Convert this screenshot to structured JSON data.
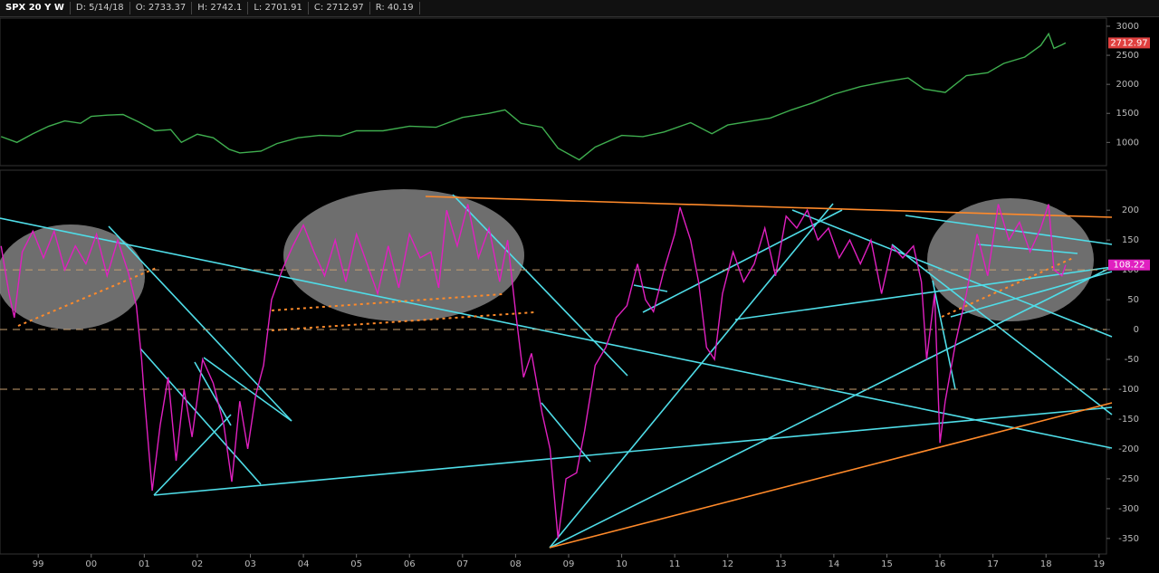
{
  "header": {
    "symbol": "SPX 20 Y W",
    "fields": [
      "D: 5/14/18",
      "O: 2733.37",
      "H: 2742.1",
      "L: 2701.91",
      "C: 2712.97",
      "R: 40.19"
    ]
  },
  "chart_data": [
    {
      "type": "line",
      "color": "#3fae4f",
      "last_value": 2712.97,
      "last_color": "#e0403f",
      "xlim": [
        1998.28,
        2019.14
      ],
      "ylim": [
        600,
        3140
      ],
      "yticks": [
        1000,
        1500,
        2000,
        2500,
        3000
      ],
      "x": [
        1998.3,
        1998.6,
        1998.9,
        1999.2,
        1999.5,
        1999.8,
        2000.0,
        2000.3,
        2000.6,
        2000.9,
        2001.2,
        2001.5,
        2001.7,
        2002.0,
        2002.3,
        2002.6,
        2002.8,
        2003.2,
        2003.5,
        2003.9,
        2004.3,
        2004.7,
        2005.0,
        2005.5,
        2006.0,
        2006.5,
        2007.0,
        2007.5,
        2007.8,
        2008.1,
        2008.5,
        2008.8,
        2009.2,
        2009.5,
        2010.0,
        2010.4,
        2010.8,
        2011.3,
        2011.7,
        2012.0,
        2012.4,
        2012.8,
        2013.2,
        2013.6,
        2014.0,
        2014.5,
        2015.0,
        2015.4,
        2015.7,
        2016.1,
        2016.5,
        2016.9,
        2017.2,
        2017.6,
        2017.9,
        2018.05,
        2018.15,
        2018.3,
        2018.37
      ],
      "values": [
        1100,
        1000,
        1150,
        1280,
        1370,
        1330,
        1450,
        1470,
        1480,
        1350,
        1200,
        1220,
        1000,
        1140,
        1080,
        880,
        820,
        850,
        980,
        1080,
        1120,
        1110,
        1200,
        1200,
        1280,
        1260,
        1430,
        1500,
        1560,
        1330,
        1260,
        900,
        700,
        920,
        1120,
        1100,
        1180,
        1340,
        1150,
        1300,
        1360,
        1420,
        1560,
        1680,
        1830,
        1960,
        2050,
        2110,
        1920,
        1860,
        2150,
        2200,
        2360,
        2470,
        2670,
        2870,
        2620,
        2680,
        2712.97
      ]
    },
    {
      "type": "line",
      "color": "#e020c0",
      "last_value": 108.22,
      "last_color": "#e020c0",
      "xlim": [
        1998.28,
        2019.14
      ],
      "ylim": [
        -376,
        267
      ],
      "yticks": [
        200,
        150,
        100,
        50,
        0,
        -50,
        -100,
        -150,
        -200,
        -250,
        -300,
        -350
      ],
      "reference_lines": [
        100,
        0,
        -100
      ],
      "reference_color": "#c8a070",
      "xticks": [
        {
          "value": 1999,
          "label": "99"
        },
        {
          "value": 2000,
          "label": "00"
        },
        {
          "value": 2001,
          "label": "01"
        },
        {
          "value": 2002,
          "label": "02"
        },
        {
          "value": 2003,
          "label": "03"
        },
        {
          "value": 2004,
          "label": "04"
        },
        {
          "value": 2005,
          "label": "05"
        },
        {
          "value": 2006,
          "label": "06"
        },
        {
          "value": 2007,
          "label": "07"
        },
        {
          "value": 2008,
          "label": "08"
        },
        {
          "value": 2009,
          "label": "09"
        },
        {
          "value": 2010,
          "label": "10"
        },
        {
          "value": 2011,
          "label": "11"
        },
        {
          "value": 2012,
          "label": "12"
        },
        {
          "value": 2013,
          "label": "13"
        },
        {
          "value": 2014,
          "label": "14"
        },
        {
          "value": 2015,
          "label": "15"
        },
        {
          "value": 2016,
          "label": "16"
        },
        {
          "value": 2017,
          "label": "17"
        },
        {
          "value": 2018,
          "label": "18"
        },
        {
          "value": 2019,
          "label": "19"
        }
      ],
      "x": [
        1998.3,
        1998.45,
        1998.55,
        1998.7,
        1998.9,
        1999.1,
        1999.3,
        1999.5,
        1999.7,
        1999.9,
        2000.1,
        2000.3,
        2000.5,
        2000.7,
        2000.85,
        2000.95,
        2001.0,
        2001.15,
        2001.3,
        2001.45,
        2001.6,
        2001.75,
        2001.9,
        2002.1,
        2002.3,
        2002.5,
        2002.65,
        2002.8,
        2002.95,
        2003.1,
        2003.25,
        2003.4,
        2003.6,
        2003.8,
        2004.0,
        2004.2,
        2004.4,
        2004.6,
        2004.8,
        2005.0,
        2005.2,
        2005.4,
        2005.6,
        2005.8,
        2006.0,
        2006.2,
        2006.4,
        2006.55,
        2006.7,
        2006.9,
        2007.1,
        2007.3,
        2007.5,
        2007.7,
        2007.85,
        2008.0,
        2008.15,
        2008.3,
        2008.5,
        2008.65,
        2008.8,
        2008.95,
        2009.15,
        2009.3,
        2009.5,
        2009.7,
        2009.9,
        2010.1,
        2010.3,
        2010.45,
        2010.6,
        2010.8,
        2011.0,
        2011.1,
        2011.3,
        2011.45,
        2011.6,
        2011.75,
        2011.9,
        2012.1,
        2012.3,
        2012.5,
        2012.7,
        2012.9,
        2013.1,
        2013.3,
        2013.5,
        2013.7,
        2013.9,
        2014.1,
        2014.3,
        2014.5,
        2014.7,
        2014.9,
        2015.1,
        2015.3,
        2015.5,
        2015.65,
        2015.75,
        2015.9,
        2016.0,
        2016.1,
        2016.3,
        2016.5,
        2016.7,
        2016.9,
        2017.1,
        2017.3,
        2017.5,
        2017.7,
        2017.9,
        2018.05,
        2018.15,
        2018.3,
        2018.37
      ],
      "values": [
        140,
        60,
        20,
        130,
        165,
        120,
        165,
        100,
        140,
        110,
        160,
        90,
        150,
        95,
        40,
        -50,
        -110,
        -270,
        -160,
        -80,
        -220,
        -100,
        -180,
        -50,
        -90,
        -160,
        -255,
        -120,
        -200,
        -110,
        -60,
        50,
        100,
        140,
        175,
        130,
        90,
        150,
        80,
        160,
        110,
        60,
        140,
        70,
        160,
        120,
        130,
        70,
        200,
        140,
        210,
        120,
        170,
        80,
        150,
        30,
        -80,
        -40,
        -140,
        -200,
        -350,
        -250,
        -240,
        -170,
        -60,
        -30,
        20,
        40,
        110,
        50,
        30,
        100,
        160,
        205,
        150,
        80,
        -30,
        -50,
        60,
        130,
        80,
        110,
        170,
        90,
        190,
        170,
        200,
        150,
        170,
        120,
        150,
        110,
        150,
        60,
        140,
        120,
        140,
        80,
        -50,
        60,
        -190,
        -120,
        -20,
        60,
        160,
        90,
        210,
        150,
        180,
        130,
        170,
        210,
        100,
        90,
        108.22
      ]
    }
  ]
}
